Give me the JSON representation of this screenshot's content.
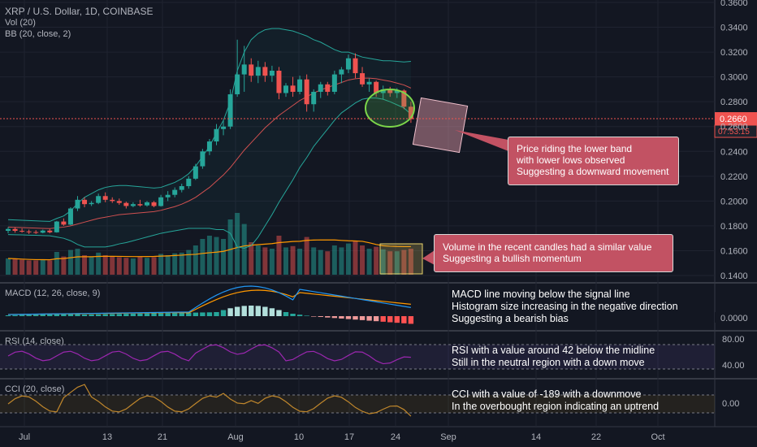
{
  "header": {
    "symbol": "XRP / U.S. Dollar, 1D, COINBASE",
    "vol": "Vol (20)",
    "bb": "BB (20, close, 2)"
  },
  "panes": {
    "macd_label": "MACD (12, 26, close, 9)",
    "rsi_label": "RSI (14, close)",
    "cci_label": "CCI (20, close)"
  },
  "price_axis": {
    "labels": [
      "0.3600",
      "0.3400",
      "0.3200",
      "0.3000",
      "0.2800",
      "0.2600",
      "0.2400",
      "0.2200",
      "0.2000",
      "0.1800",
      "0.1600",
      "0.1400"
    ],
    "last_price": "0.2660",
    "countdown": "07:53:15"
  },
  "indicator_axis": {
    "macd_zero": "0.0000",
    "rsi_80": "80.00",
    "rsi_40": "40.00",
    "cci_zero": "0.00"
  },
  "time_axis": [
    "Jul",
    "13",
    "21",
    "Aug",
    "10",
    "17",
    "24",
    "Sep",
    "14",
    "22",
    "Oct"
  ],
  "callouts": {
    "price": [
      "Price riding the lower band",
      "with lower lows observed",
      "Suggesting a downward movement"
    ],
    "volume": [
      "Volume in the recent candles had a similar value",
      "Suggesting a bullish momentum"
    ]
  },
  "notes": {
    "macd": [
      "MACD line moving below the signal line",
      "Histogram size increasing in the negative direction",
      "Suggesting a bearish bias"
    ],
    "rsi": [
      "RSI with a value around 42 below the midline",
      "Still in the neutral region with a down move"
    ],
    "cci": [
      "CCI with a value of -189 with a downmove",
      "In the overbought region indicating an uptrend"
    ]
  },
  "colors": {
    "background": "#131722",
    "up": "#26a69a",
    "down": "#ef5350",
    "bb_band": "#26a69a",
    "bb_basis": "#d05050",
    "macd_line": "#2196f3",
    "signal_line": "#ff9800",
    "rsi_line": "#9c27b0",
    "cci_line": "#c0872c",
    "callout": "#c25263"
  },
  "chart_data": {
    "type": "candlestick",
    "title": "XRP / U.S. Dollar, 1D, COINBASE",
    "y_range": [
      0.14,
      0.36
    ],
    "last_price": 0.266,
    "candles": [
      {
        "d": "Jun 29",
        "o": 0.176,
        "h": 0.179,
        "l": 0.174,
        "c": 0.1775
      },
      {
        "d": "Jun 30",
        "o": 0.1775,
        "h": 0.179,
        "l": 0.1745,
        "c": 0.176
      },
      {
        "d": "Jul 1",
        "o": 0.176,
        "h": 0.178,
        "l": 0.1745,
        "c": 0.1755
      },
      {
        "d": "Jul 2",
        "o": 0.1755,
        "h": 0.177,
        "l": 0.1735,
        "c": 0.175
      },
      {
        "d": "Jul 3",
        "o": 0.175,
        "h": 0.1765,
        "l": 0.1735,
        "c": 0.1745
      },
      {
        "d": "Jul 4",
        "o": 0.1745,
        "h": 0.177,
        "l": 0.174,
        "c": 0.1762
      },
      {
        "d": "Jul 5",
        "o": 0.1762,
        "h": 0.1775,
        "l": 0.174,
        "c": 0.1748
      },
      {
        "d": "Jul 6",
        "o": 0.1748,
        "h": 0.184,
        "l": 0.1745,
        "c": 0.1835
      },
      {
        "d": "Jul 7",
        "o": 0.1835,
        "h": 0.186,
        "l": 0.18,
        "c": 0.181
      },
      {
        "d": "Jul 8",
        "o": 0.181,
        "h": 0.195,
        "l": 0.1805,
        "c": 0.194
      },
      {
        "d": "Jul 9",
        "o": 0.194,
        "h": 0.204,
        "l": 0.192,
        "c": 0.201
      },
      {
        "d": "Jul 10",
        "o": 0.201,
        "h": 0.203,
        "l": 0.195,
        "c": 0.1975
      },
      {
        "d": "Jul 11",
        "o": 0.1975,
        "h": 0.2,
        "l": 0.196,
        "c": 0.1985
      },
      {
        "d": "Jul 12",
        "o": 0.1985,
        "h": 0.206,
        "l": 0.1975,
        "c": 0.204
      },
      {
        "d": "Jul 13",
        "o": 0.204,
        "h": 0.207,
        "l": 0.199,
        "c": 0.201
      },
      {
        "d": "Jul 14",
        "o": 0.201,
        "h": 0.203,
        "l": 0.1985,
        "c": 0.2
      },
      {
        "d": "Jul 15",
        "o": 0.2,
        "h": 0.202,
        "l": 0.197,
        "c": 0.1985
      },
      {
        "d": "Jul 16",
        "o": 0.1985,
        "h": 0.1995,
        "l": 0.194,
        "c": 0.196
      },
      {
        "d": "Jul 17",
        "o": 0.196,
        "h": 0.199,
        "l": 0.195,
        "c": 0.1975
      },
      {
        "d": "Jul 18",
        "o": 0.1975,
        "h": 0.201,
        "l": 0.1955,
        "c": 0.1965
      },
      {
        "d": "Jul 19",
        "o": 0.1965,
        "h": 0.2,
        "l": 0.1955,
        "c": 0.199
      },
      {
        "d": "Jul 20",
        "o": 0.199,
        "h": 0.2,
        "l": 0.195,
        "c": 0.196
      },
      {
        "d": "Jul 21",
        "o": 0.196,
        "h": 0.205,
        "l": 0.1955,
        "c": 0.203
      },
      {
        "d": "Jul 22",
        "o": 0.203,
        "h": 0.208,
        "l": 0.2,
        "c": 0.205
      },
      {
        "d": "Jul 23",
        "o": 0.205,
        "h": 0.211,
        "l": 0.203,
        "c": 0.209
      },
      {
        "d": "Jul 24",
        "o": 0.209,
        "h": 0.214,
        "l": 0.207,
        "c": 0.212
      },
      {
        "d": "Jul 25",
        "o": 0.212,
        "h": 0.22,
        "l": 0.21,
        "c": 0.218
      },
      {
        "d": "Jul 26",
        "o": 0.218,
        "h": 0.23,
        "l": 0.217,
        "c": 0.228
      },
      {
        "d": "Jul 27",
        "o": 0.228,
        "h": 0.242,
        "l": 0.226,
        "c": 0.24
      },
      {
        "d": "Jul 28",
        "o": 0.24,
        "h": 0.25,
        "l": 0.237,
        "c": 0.248
      },
      {
        "d": "Jul 29",
        "o": 0.248,
        "h": 0.262,
        "l": 0.245,
        "c": 0.258
      },
      {
        "d": "Jul 30",
        "o": 0.258,
        "h": 0.265,
        "l": 0.253,
        "c": 0.26
      },
      {
        "d": "Jul 31",
        "o": 0.26,
        "h": 0.29,
        "l": 0.258,
        "c": 0.286
      },
      {
        "d": "Aug 1",
        "o": 0.286,
        "h": 0.33,
        "l": 0.284,
        "c": 0.302
      },
      {
        "d": "Aug 2",
        "o": 0.302,
        "h": 0.325,
        "l": 0.288,
        "c": 0.31
      },
      {
        "d": "Aug 3",
        "o": 0.31,
        "h": 0.315,
        "l": 0.296,
        "c": 0.301
      },
      {
        "d": "Aug 4",
        "o": 0.301,
        "h": 0.313,
        "l": 0.295,
        "c": 0.308
      },
      {
        "d": "Aug 5",
        "o": 0.308,
        "h": 0.312,
        "l": 0.296,
        "c": 0.301
      },
      {
        "d": "Aug 6",
        "o": 0.301,
        "h": 0.309,
        "l": 0.296,
        "c": 0.305
      },
      {
        "d": "Aug 7",
        "o": 0.305,
        "h": 0.308,
        "l": 0.282,
        "c": 0.287
      },
      {
        "d": "Aug 8",
        "o": 0.287,
        "h": 0.295,
        "l": 0.284,
        "c": 0.293
      },
      {
        "d": "Aug 9",
        "o": 0.293,
        "h": 0.3,
        "l": 0.284,
        "c": 0.288
      },
      {
        "d": "Aug 10",
        "o": 0.288,
        "h": 0.301,
        "l": 0.286,
        "c": 0.298
      },
      {
        "d": "Aug 11",
        "o": 0.298,
        "h": 0.302,
        "l": 0.272,
        "c": 0.278
      },
      {
        "d": "Aug 12",
        "o": 0.278,
        "h": 0.29,
        "l": 0.272,
        "c": 0.288
      },
      {
        "d": "Aug 13",
        "o": 0.288,
        "h": 0.296,
        "l": 0.283,
        "c": 0.294
      },
      {
        "d": "Aug 14",
        "o": 0.294,
        "h": 0.296,
        "l": 0.285,
        "c": 0.288
      },
      {
        "d": "Aug 15",
        "o": 0.288,
        "h": 0.305,
        "l": 0.286,
        "c": 0.302
      },
      {
        "d": "Aug 16",
        "o": 0.302,
        "h": 0.308,
        "l": 0.295,
        "c": 0.306
      },
      {
        "d": "Aug 17",
        "o": 0.306,
        "h": 0.318,
        "l": 0.303,
        "c": 0.315
      },
      {
        "d": "Aug 18",
        "o": 0.315,
        "h": 0.319,
        "l": 0.299,
        "c": 0.303
      },
      {
        "d": "Aug 19",
        "o": 0.303,
        "h": 0.308,
        "l": 0.292,
        "c": 0.294
      },
      {
        "d": "Aug 20",
        "o": 0.294,
        "h": 0.299,
        "l": 0.288,
        "c": 0.296
      },
      {
        "d": "Aug 21",
        "o": 0.296,
        "h": 0.297,
        "l": 0.284,
        "c": 0.287
      },
      {
        "d": "Aug 22",
        "o": 0.287,
        "h": 0.293,
        "l": 0.282,
        "c": 0.29
      },
      {
        "d": "Aug 23",
        "o": 0.29,
        "h": 0.292,
        "l": 0.284,
        "c": 0.287
      },
      {
        "d": "Aug 24",
        "o": 0.287,
        "h": 0.291,
        "l": 0.283,
        "c": 0.289
      },
      {
        "d": "Aug 25",
        "o": 0.289,
        "h": 0.29,
        "l": 0.274,
        "c": 0.276
      },
      {
        "d": "Aug 26",
        "o": 0.276,
        "h": 0.28,
        "l": 0.263,
        "c": 0.266
      }
    ],
    "volume": [
      25,
      24,
      23,
      22,
      22,
      23,
      22,
      35,
      28,
      38,
      40,
      30,
      28,
      34,
      30,
      28,
      27,
      26,
      25,
      28,
      26,
      27,
      32,
      30,
      33,
      34,
      38,
      45,
      55,
      60,
      58,
      55,
      85,
      95,
      78,
      50,
      45,
      42,
      40,
      60,
      42,
      44,
      40,
      58,
      42,
      38,
      36,
      45,
      42,
      48,
      52,
      45,
      40,
      43,
      39,
      36,
      36,
      38,
      40
    ],
    "bb_upper": [
      0.185,
      0.1848,
      0.1845,
      0.1843,
      0.184,
      0.1838,
      0.1836,
      0.186,
      0.188,
      0.192,
      0.198,
      0.203,
      0.206,
      0.209,
      0.211,
      0.212,
      0.2125,
      0.2125,
      0.212,
      0.2115,
      0.211,
      0.2105,
      0.211,
      0.213,
      0.215,
      0.218,
      0.222,
      0.228,
      0.236,
      0.244,
      0.255,
      0.265,
      0.28,
      0.305,
      0.32,
      0.33,
      0.335,
      0.338,
      0.339,
      0.339,
      0.338,
      0.337,
      0.335,
      0.333,
      0.33,
      0.328,
      0.325,
      0.322,
      0.32,
      0.32,
      0.318,
      0.316,
      0.315,
      0.314,
      0.313,
      0.313,
      0.3125,
      0.312,
      0.3125
    ],
    "bb_basis": [
      0.179,
      0.1788,
      0.1786,
      0.1784,
      0.1782,
      0.178,
      0.1778,
      0.1785,
      0.179,
      0.18,
      0.1815,
      0.183,
      0.1845,
      0.186,
      0.187,
      0.188,
      0.189,
      0.1895,
      0.19,
      0.1905,
      0.191,
      0.1915,
      0.1925,
      0.194,
      0.1955,
      0.1975,
      0.2,
      0.203,
      0.207,
      0.211,
      0.216,
      0.221,
      0.227,
      0.234,
      0.241,
      0.247,
      0.253,
      0.259,
      0.264,
      0.269,
      0.273,
      0.277,
      0.281,
      0.284,
      0.287,
      0.2895,
      0.2915,
      0.2935,
      0.2955,
      0.2975,
      0.2985,
      0.299,
      0.299,
      0.2985,
      0.2975,
      0.2965,
      0.295,
      0.2935,
      0.291
    ],
    "bb_lower": [
      0.173,
      0.1728,
      0.1727,
      0.1725,
      0.1724,
      0.1722,
      0.172,
      0.171,
      0.17,
      0.168,
      0.165,
      0.163,
      0.163,
      0.163,
      0.163,
      0.164,
      0.1655,
      0.1665,
      0.168,
      0.1695,
      0.171,
      0.1725,
      0.174,
      0.175,
      0.176,
      0.177,
      0.178,
      0.178,
      0.178,
      0.178,
      0.177,
      0.177,
      0.174,
      0.163,
      0.162,
      0.164,
      0.171,
      0.18,
      0.189,
      0.199,
      0.208,
      0.217,
      0.227,
      0.235,
      0.244,
      0.251,
      0.258,
      0.265,
      0.271,
      0.275,
      0.279,
      0.282,
      0.283,
      0.283,
      0.282,
      0.28,
      0.2775,
      0.275,
      0.27
    ]
  }
}
